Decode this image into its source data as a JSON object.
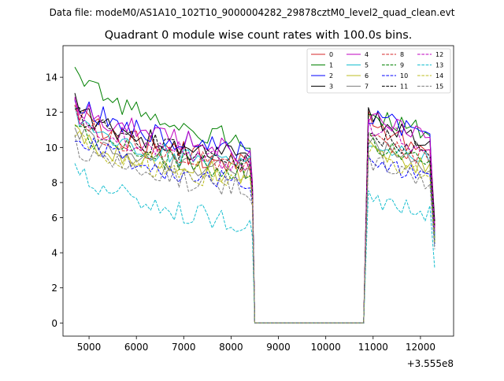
{
  "chart_data": {
    "type": "line",
    "suptitle": "Data file: modeM0/AS1A10_102T10_9000004282_29878cztM0_level2_quad_clean.evt",
    "title": "Quadrant 0 module wise count rates with 100.0s bins.",
    "xlabel": "",
    "ylabel": "",
    "x_offset_label": "+3.555e8",
    "xlim": [
      4450,
      12700
    ],
    "ylim": [
      -0.75,
      15.8
    ],
    "x_ticks": [
      5000,
      6000,
      7000,
      8000,
      9000,
      10000,
      11000,
      12000
    ],
    "x_tick_labels": [
      "5000",
      "6000",
      "7000",
      "8000",
      "9000",
      "10000",
      "11000",
      "12000"
    ],
    "y_ticks": [
      0,
      2,
      4,
      6,
      8,
      10,
      12,
      14
    ],
    "y_tick_labels": [
      "0",
      "2",
      "4",
      "6",
      "8",
      "10",
      "12",
      "14"
    ],
    "segments": {
      "seg1": {
        "start": 4700,
        "end": 8400,
        "step": 100
      },
      "gap": {
        "start": 8500,
        "end": 10800
      },
      "seg2": {
        "start": 10900,
        "end": 12200,
        "step": 100
      },
      "end_x": 12300
    },
    "legend_position": "upper-right",
    "series": [
      {
        "name": "0",
        "color": "#d62728",
        "dash": "solid",
        "seg1_start": 12.3,
        "seg1_end": 9.0,
        "seg1_drop": 7.4,
        "seg2_start": 11.6,
        "seg2_end": 9.5,
        "end_value": 5.6,
        "seed": 1
      },
      {
        "name": "1",
        "color": "#008000",
        "dash": "solid",
        "seg1_start": 14.6,
        "seg1_end": 10.3,
        "seg1_drop": 8.0,
        "seg2_start": 11.9,
        "seg2_end": 10.9,
        "end_value": 4.5,
        "seed": 2
      },
      {
        "name": "2",
        "color": "#0000ff",
        "dash": "solid",
        "seg1_start": 13.2,
        "seg1_end": 9.6,
        "seg1_drop": 7.8,
        "seg2_start": 11.9,
        "seg2_end": 10.5,
        "end_value": 5.0,
        "seed": 3
      },
      {
        "name": "3",
        "color": "#000000",
        "dash": "solid",
        "seg1_start": 12.8,
        "seg1_end": 9.3,
        "seg1_drop": 7.6,
        "seg2_start": 11.8,
        "seg2_end": 10.0,
        "end_value": 5.8,
        "seed": 4
      },
      {
        "name": "4",
        "color": "#bf00bf",
        "dash": "solid",
        "seg1_start": 13.0,
        "seg1_end": 9.7,
        "seg1_drop": 8.0,
        "seg2_start": 11.5,
        "seg2_end": 10.8,
        "end_value": 5.2,
        "seed": 5
      },
      {
        "name": "5",
        "color": "#17becf",
        "dash": "solid",
        "seg1_start": 11.8,
        "seg1_end": 8.9,
        "seg1_drop": 7.3,
        "seg2_start": 10.6,
        "seg2_end": 9.2,
        "end_value": 4.9,
        "seed": 6
      },
      {
        "name": "6",
        "color": "#bcbd22",
        "dash": "solid",
        "seg1_start": 11.2,
        "seg1_end": 8.3,
        "seg1_drop": 7.0,
        "seg2_start": 10.0,
        "seg2_end": 8.7,
        "end_value": 4.6,
        "seed": 7
      },
      {
        "name": "7",
        "color": "#7f7f7f",
        "dash": "solid",
        "seg1_start": 11.5,
        "seg1_end": 8.5,
        "seg1_drop": 7.2,
        "seg2_start": 10.2,
        "seg2_end": 8.9,
        "end_value": 4.8,
        "seed": 8
      },
      {
        "name": "8",
        "color": "#d62728",
        "dash": "dashed",
        "seg1_start": 12.0,
        "seg1_end": 8.8,
        "seg1_drop": 7.4,
        "seg2_start": 10.8,
        "seg2_end": 9.2,
        "end_value": 5.3,
        "seed": 9
      },
      {
        "name": "9",
        "color": "#008000",
        "dash": "dashed",
        "seg1_start": 11.3,
        "seg1_end": 8.6,
        "seg1_drop": 7.2,
        "seg2_start": 10.4,
        "seg2_end": 8.9,
        "end_value": 4.7,
        "seed": 10
      },
      {
        "name": "10",
        "color": "#0000ff",
        "dash": "dashed",
        "seg1_start": 10.9,
        "seg1_end": 7.9,
        "seg1_drop": 6.8,
        "seg2_start": 9.5,
        "seg2_end": 8.0,
        "end_value": 4.4,
        "seed": 11
      },
      {
        "name": "11",
        "color": "#000000",
        "dash": "dashed",
        "seg1_start": 12.4,
        "seg1_end": 9.2,
        "seg1_drop": 7.7,
        "seg2_start": 10.9,
        "seg2_end": 9.6,
        "end_value": 5.5,
        "seed": 12
      },
      {
        "name": "12",
        "color": "#bf00bf",
        "dash": "dashed",
        "seg1_start": 12.3,
        "seg1_end": 9.0,
        "seg1_drop": 7.5,
        "seg2_start": 11.2,
        "seg2_end": 9.9,
        "end_value": 5.4,
        "seed": 13
      },
      {
        "name": "13",
        "color": "#17becf",
        "dash": "dashed",
        "seg1_start": 9.0,
        "seg1_end": 5.6,
        "seg1_drop": 4.9,
        "seg2_start": 7.2,
        "seg2_end": 6.2,
        "end_value": 3.1,
        "seed": 14
      },
      {
        "name": "14",
        "color": "#bcbd22",
        "dash": "dashed",
        "seg1_start": 11.0,
        "seg1_end": 8.0,
        "seg1_drop": 6.9,
        "seg2_start": 9.8,
        "seg2_end": 8.4,
        "end_value": 4.5,
        "seed": 15
      },
      {
        "name": "15",
        "color": "#7f7f7f",
        "dash": "dashed",
        "seg1_start": 10.3,
        "seg1_end": 7.6,
        "seg1_drop": 6.7,
        "seg2_start": 9.2,
        "seg2_end": 7.9,
        "end_value": 4.2,
        "seed": 16
      }
    ]
  }
}
